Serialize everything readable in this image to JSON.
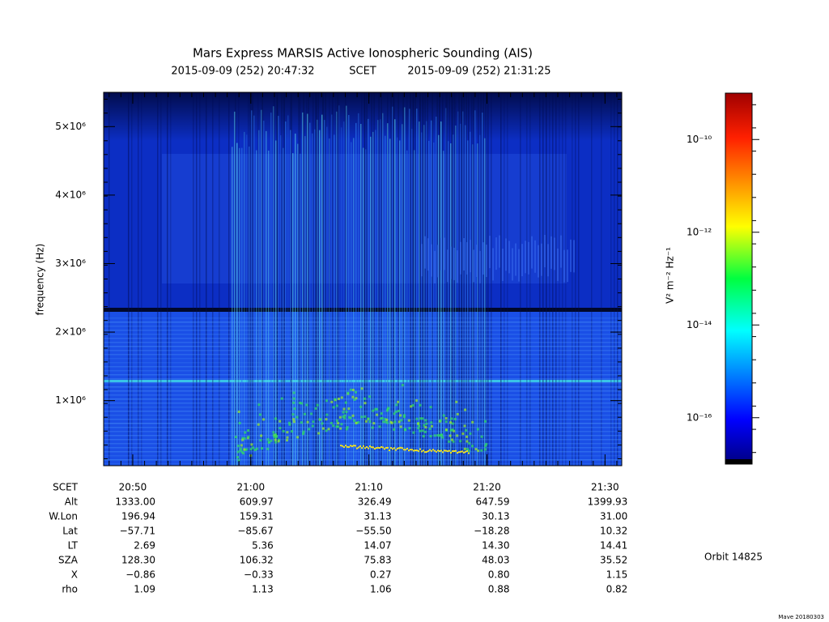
{
  "chart_data": {
    "type": "spectrogram",
    "title": "Mars Express MARSIS Active Ionospheric Sounding (AIS)",
    "subtitle_start": "2015-09-09 (252) 20:47:32",
    "subtitle_frame": "SCET",
    "subtitle_end": "2015-09-09 (252) 21:31:25",
    "ylabel": "frequency (Hz)",
    "xlim": [
      "20:47:32",
      "21:31:25"
    ],
    "xticks": [
      "20:50",
      "21:00",
      "21:10",
      "21:20",
      "21:30"
    ],
    "ylim": [
      50000,
      5500000
    ],
    "yticks": [
      {
        "value": 1000000,
        "label": "1×10⁶"
      },
      {
        "value": 2000000,
        "label": "2×10⁶"
      },
      {
        "value": 3000000,
        "label": "3×10⁶"
      },
      {
        "value": 4000000,
        "label": "4×10⁶"
      },
      {
        "value": 5000000,
        "label": "5×10⁶"
      }
    ],
    "colorbar": {
      "label": "V² m⁻² Hz⁻¹",
      "scale": "log",
      "lim": [
        1e-17,
        1e-09
      ],
      "ticks": [
        {
          "value": 1e-16,
          "label": "10⁻¹⁶"
        },
        {
          "value": 1e-14,
          "label": "10⁻¹⁴"
        },
        {
          "value": 1e-12,
          "label": "10⁻¹²"
        },
        {
          "value": 1e-10,
          "label": "10⁻¹⁰"
        }
      ]
    }
  },
  "ephemeris": {
    "time_label": "SCET",
    "rows": [
      {
        "label": "Alt",
        "values": [
          "1333.00",
          "609.97",
          "326.49",
          "647.59",
          "1399.93"
        ]
      },
      {
        "label": "W.Lon",
        "values": [
          "196.94",
          "159.31",
          "31.13",
          "30.13",
          "31.00"
        ]
      },
      {
        "label": "Lat",
        "values": [
          "−57.71",
          "−85.67",
          "−55.50",
          "−18.28",
          "10.32"
        ]
      },
      {
        "label": "LT",
        "values": [
          "2.69",
          "5.36",
          "14.07",
          "14.30",
          "14.41"
        ]
      },
      {
        "label": "SZA",
        "values": [
          "128.30",
          "106.32",
          "75.83",
          "48.03",
          "35.52"
        ]
      },
      {
        "label": "X",
        "values": [
          "−0.86",
          "−0.33",
          "0.27",
          "0.80",
          "1.15"
        ]
      },
      {
        "label": "rho",
        "values": [
          "1.09",
          "1.13",
          "1.06",
          "0.88",
          "0.82"
        ]
      }
    ]
  },
  "orbit": "Orbit 14825",
  "footer": "Mave 20180303"
}
